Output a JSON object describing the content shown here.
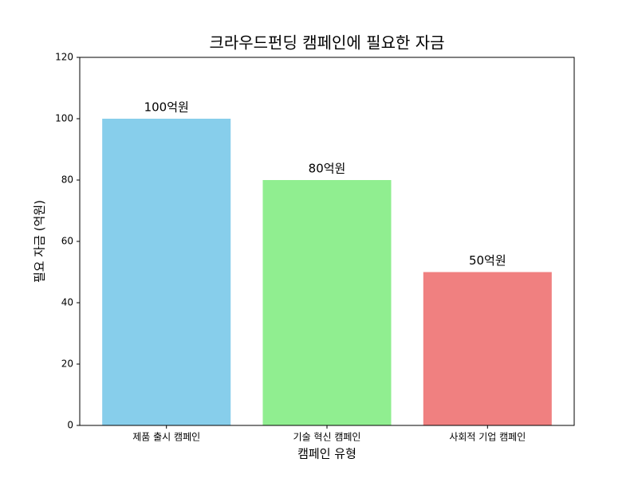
{
  "chart_data": {
    "type": "bar",
    "title": "크라우드펀딩 캠페인에 필요한 자금",
    "xlabel": "캠페인 유형",
    "ylabel": "필요 자금 (억원)",
    "categories": [
      "제품 출시 캠페인",
      "기술 혁신 캠페인",
      "사회적 기업 캠페인"
    ],
    "values": [
      100,
      80,
      50
    ],
    "value_labels": [
      "100억원",
      "80억원",
      "50억원"
    ],
    "colors": [
      "#87ceeb",
      "#90ee90",
      "#f08080"
    ],
    "ylim": [
      0,
      120
    ],
    "yticks": [
      0,
      20,
      40,
      60,
      80,
      100,
      120
    ],
    "grid": false
  }
}
